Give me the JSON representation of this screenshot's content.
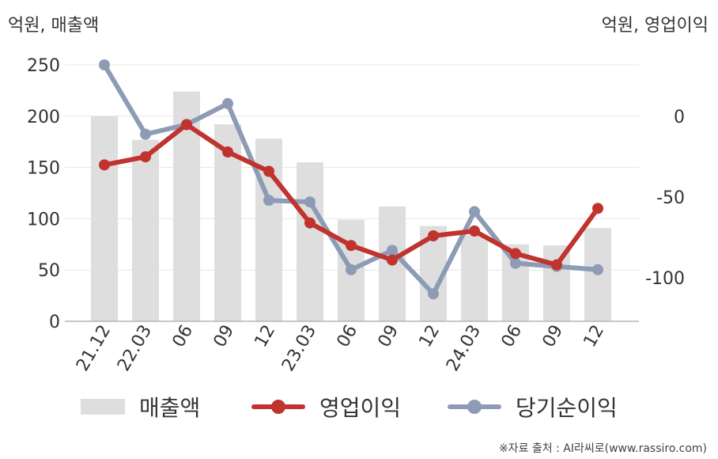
{
  "units": {
    "left": "억원, 매출액",
    "right": "억원, 영업이익"
  },
  "source": "※자료 출처 : AI라씨로(www.rassiro.com)",
  "legend": {
    "sales": "매출액",
    "operating": "영업이익",
    "net": "당기순이익"
  },
  "colors": {
    "bar": "#dedede",
    "operating": "#c0332f",
    "net": "#8e9bb5",
    "grid": "#e6e6e6",
    "axis": "#b5b5b5"
  },
  "chart_data": {
    "type": "bar",
    "categories": [
      "21.12",
      "22.03",
      "06",
      "09",
      "12",
      "23.03",
      "06",
      "09",
      "12",
      "24.03",
      "06",
      "09",
      "12"
    ],
    "left_axis": {
      "range": [
        0,
        250
      ],
      "ticks": [
        "0",
        "50",
        "100",
        "150",
        "200",
        "250"
      ]
    },
    "right_axis": {
      "range": [
        -127,
        32
      ],
      "ticks": [
        "0",
        "-50",
        "-100"
      ],
      "tick_values": [
        0,
        -50,
        -100
      ]
    },
    "series": [
      {
        "name": "매출액",
        "type": "bar",
        "axis": "left",
        "values": [
          200,
          177,
          224,
          192,
          178,
          155,
          99,
          112,
          93,
          84,
          75,
          74,
          91
        ]
      },
      {
        "name": "영업이익",
        "type": "line",
        "axis": "right",
        "values": [
          -30,
          -25,
          -5,
          -22,
          -34,
          -66,
          -80,
          -89,
          -74,
          -71,
          -85,
          -92,
          -57
        ]
      },
      {
        "name": "당기순이익",
        "type": "line",
        "axis": "right",
        "values": [
          32,
          -11,
          -5,
          8,
          -52,
          -53,
          -95,
          -83,
          -110,
          -59,
          -91,
          -93,
          -95
        ]
      }
    ]
  }
}
